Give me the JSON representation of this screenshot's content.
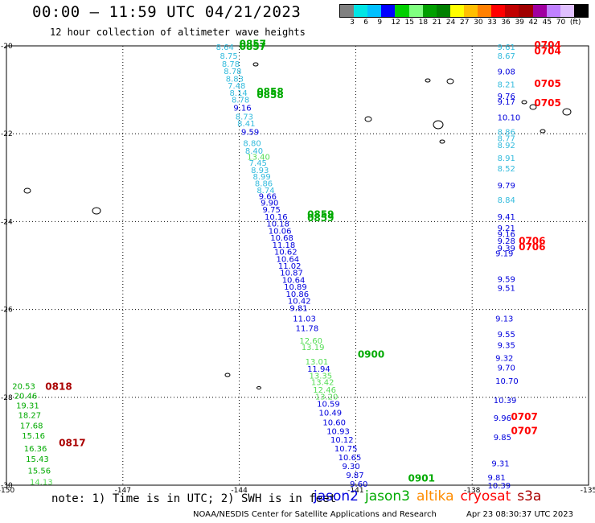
{
  "header": {
    "title": "00:00 – 11:59 UTC 04/21/2023",
    "subtitle": "12 hour collection of altimeter wave heights"
  },
  "colorbar": {
    "colors": [
      "#808080",
      "#00e5e5",
      "#00c0ff",
      "#0000ff",
      "#00d000",
      "#80ff80",
      "#00a000",
      "#008000",
      "#ffff00",
      "#ffbf00",
      "#ff8000",
      "#ff0000",
      "#c00000",
      "#a00000",
      "#a000a0",
      "#c080ff",
      "#e0c0ff",
      "#000000"
    ],
    "labels": [
      "3",
      "6",
      "9",
      "12",
      "15",
      "18",
      "21",
      "24",
      "27",
      "30",
      "33",
      "36",
      "39",
      "42",
      "45",
      "70",
      "(ft)"
    ]
  },
  "chart_data": {
    "type": "scatter",
    "xlim": [
      -150,
      -135
    ],
    "ylim": [
      -30,
      -20
    ],
    "x_ticks": [
      "-150",
      "-147",
      "-144",
      "-141",
      "-138",
      "-135"
    ],
    "y_ticks": [
      "-20",
      "-22",
      "-24",
      "-26",
      "-28",
      "-30"
    ],
    "satellite_colors": {
      "jason2": "#0000dd",
      "jason2_light": "#33bbdd",
      "jason3": "#00aa00",
      "jason3_light": "#55dd55",
      "altika": "#ff8c00",
      "cryosat": "#ff0000",
      "s3a": "#aa0000"
    },
    "tracks": [
      {
        "color": "#33bbdd",
        "points": [
          {
            "lon": -144.6,
            "lat": -20.02,
            "v": "8.64"
          },
          {
            "lon": -144.5,
            "lat": -20.22,
            "v": "8.75"
          },
          {
            "lon": -144.45,
            "lat": -20.4,
            "v": "8.78"
          },
          {
            "lon": -144.4,
            "lat": -20.57,
            "v": "8.78"
          },
          {
            "lon": -144.35,
            "lat": -20.74,
            "v": "8.83"
          },
          {
            "lon": -144.3,
            "lat": -20.9,
            "v": "7.48"
          },
          {
            "lon": -144.25,
            "lat": -21.06,
            "v": "8.14"
          },
          {
            "lon": -144.2,
            "lat": -21.22,
            "v": "8.78"
          },
          {
            "lon": -144.1,
            "lat": -21.6,
            "v": "8.73"
          },
          {
            "lon": -144.05,
            "lat": -21.76,
            "v": "8.41"
          },
          {
            "lon": -143.9,
            "lat": -22.21,
            "v": "8.80"
          },
          {
            "lon": -143.85,
            "lat": -22.38,
            "v": "8.40"
          },
          {
            "lon": -143.75,
            "lat": -22.66,
            "v": "7.45"
          },
          {
            "lon": -143.7,
            "lat": -22.82,
            "v": "8.93"
          },
          {
            "lon": -143.65,
            "lat": -22.97,
            "v": "8.99"
          },
          {
            "lon": -143.6,
            "lat": -23.12,
            "v": "8.86"
          },
          {
            "lon": -143.55,
            "lat": -23.28,
            "v": "8.74"
          }
        ]
      },
      {
        "color": "#0000dd",
        "points": [
          {
            "lon": -144.15,
            "lat": -21.4,
            "v": "9.16"
          },
          {
            "lon": -143.95,
            "lat": -21.95,
            "v": "9.59"
          },
          {
            "lon": -143.5,
            "lat": -23.42,
            "v": "9.66"
          },
          {
            "lon": -143.45,
            "lat": -23.56,
            "v": "9.90"
          },
          {
            "lon": -143.4,
            "lat": -23.72,
            "v": "9.75"
          },
          {
            "lon": -143.35,
            "lat": -23.88,
            "v": "10.16"
          },
          {
            "lon": -143.3,
            "lat": -24.04,
            "v": "10.18"
          },
          {
            "lon": -143.25,
            "lat": -24.2,
            "v": "10.06"
          },
          {
            "lon": -143.2,
            "lat": -24.36,
            "v": "10.68"
          },
          {
            "lon": -143.15,
            "lat": -24.52,
            "v": "11.18"
          },
          {
            "lon": -143.1,
            "lat": -24.68,
            "v": "10.62"
          },
          {
            "lon": -143.05,
            "lat": -24.84,
            "v": "10.64"
          },
          {
            "lon": -143.0,
            "lat": -25.0,
            "v": "11.02"
          },
          {
            "lon": -142.95,
            "lat": -25.16,
            "v": "10.87"
          },
          {
            "lon": -142.9,
            "lat": -25.32,
            "v": "10.64"
          },
          {
            "lon": -142.85,
            "lat": -25.48,
            "v": "10.89"
          },
          {
            "lon": -142.8,
            "lat": -25.64,
            "v": "10.86"
          },
          {
            "lon": -142.75,
            "lat": -25.8,
            "v": "10.42"
          },
          {
            "lon": -142.7,
            "lat": -25.96,
            "v": "9.81"
          },
          {
            "lon": -142.62,
            "lat": -26.2,
            "v": "11.03"
          },
          {
            "lon": -142.55,
            "lat": -26.42,
            "v": "11.78"
          },
          {
            "lon": -142.25,
            "lat": -27.34,
            "v": "11.94"
          },
          {
            "lon": -142.0,
            "lat": -28.14,
            "v": "10.59"
          },
          {
            "lon": -141.95,
            "lat": -28.34,
            "v": "10.49"
          },
          {
            "lon": -141.85,
            "lat": -28.56,
            "v": "10.60"
          },
          {
            "lon": -141.75,
            "lat": -28.76,
            "v": "10.93"
          },
          {
            "lon": -141.65,
            "lat": -28.96,
            "v": "10.12"
          },
          {
            "lon": -141.55,
            "lat": -29.16,
            "v": "10.75"
          },
          {
            "lon": -141.45,
            "lat": -29.36,
            "v": "10.65"
          },
          {
            "lon": -141.35,
            "lat": -29.56,
            "v": "9.30"
          },
          {
            "lon": -141.25,
            "lat": -29.76,
            "v": "9.87"
          },
          {
            "lon": -141.15,
            "lat": -29.96,
            "v": "9.60"
          }
        ]
      },
      {
        "color": "#55dd55",
        "points": [
          {
            "lon": -143.8,
            "lat": -22.52,
            "v": "13.40"
          },
          {
            "lon": -142.45,
            "lat": -26.7,
            "v": "12.60"
          },
          {
            "lon": -142.4,
            "lat": -26.85,
            "v": "13.19"
          },
          {
            "lon": -142.3,
            "lat": -27.18,
            "v": "13.01"
          },
          {
            "lon": -142.2,
            "lat": -27.5,
            "v": "13.35"
          },
          {
            "lon": -142.15,
            "lat": -27.65,
            "v": "13.42"
          },
          {
            "lon": -142.1,
            "lat": -27.82,
            "v": "12.46"
          },
          {
            "lon": -142.05,
            "lat": -27.98,
            "v": "13.20"
          }
        ]
      },
      {
        "color": "#33bbdd",
        "points": [
          {
            "lon": -137.35,
            "lat": -20.02,
            "v": "9.61"
          },
          {
            "lon": -137.35,
            "lat": -20.22,
            "v": "8.67"
          },
          {
            "lon": -137.35,
            "lat": -20.87,
            "v": "8.21"
          },
          {
            "lon": -137.35,
            "lat": -21.95,
            "v": "8.86"
          },
          {
            "lon": -137.35,
            "lat": -22.1,
            "v": "8.77"
          },
          {
            "lon": -137.35,
            "lat": -22.25,
            "v": "8.92"
          },
          {
            "lon": -137.35,
            "lat": -22.55,
            "v": "8.91"
          },
          {
            "lon": -137.35,
            "lat": -22.78,
            "v": "8.52"
          },
          {
            "lon": -137.35,
            "lat": -23.5,
            "v": "8.84"
          }
        ]
      },
      {
        "color": "#0000dd",
        "points": [
          {
            "lon": -137.35,
            "lat": -20.58,
            "v": "9.08"
          },
          {
            "lon": -137.35,
            "lat": -21.14,
            "v": "9.76"
          },
          {
            "lon": -137.35,
            "lat": -21.26,
            "v": "9.17"
          },
          {
            "lon": -137.35,
            "lat": -21.62,
            "v": "10.10"
          },
          {
            "lon": -137.35,
            "lat": -23.17,
            "v": "9.79"
          },
          {
            "lon": -137.35,
            "lat": -23.88,
            "v": "9.41"
          },
          {
            "lon": -137.35,
            "lat": -24.14,
            "v": "9.21"
          },
          {
            "lon": -137.35,
            "lat": -24.28,
            "v": "9.16"
          },
          {
            "lon": -137.35,
            "lat": -24.43,
            "v": "9.28"
          },
          {
            "lon": -137.35,
            "lat": -24.6,
            "v": "9.39"
          },
          {
            "lon": -137.4,
            "lat": -24.72,
            "v": "9.19"
          },
          {
            "lon": -137.35,
            "lat": -25.3,
            "v": "9.59"
          },
          {
            "lon": -137.35,
            "lat": -25.5,
            "v": "9.51"
          },
          {
            "lon": -137.4,
            "lat": -26.2,
            "v": "9.13"
          },
          {
            "lon": -137.35,
            "lat": -26.56,
            "v": "9.55"
          },
          {
            "lon": -137.35,
            "lat": -26.8,
            "v": "9.35"
          },
          {
            "lon": -137.4,
            "lat": -27.1,
            "v": "9.32"
          },
          {
            "lon": -137.35,
            "lat": -27.32,
            "v": "9.70"
          },
          {
            "lon": -137.4,
            "lat": -27.62,
            "v": "10.70"
          },
          {
            "lon": -137.45,
            "lat": -28.06,
            "v": "10.39"
          },
          {
            "lon": -137.45,
            "lat": -28.46,
            "v": "9.96"
          },
          {
            "lon": -137.45,
            "lat": -28.9,
            "v": "9.85"
          },
          {
            "lon": -137.5,
            "lat": -29.5,
            "v": "9.31"
          },
          {
            "lon": -137.6,
            "lat": -29.82,
            "v": "9.81"
          },
          {
            "lon": -137.6,
            "lat": -30.0,
            "v": "10.39"
          }
        ]
      },
      {
        "color": "#00aa00",
        "points": [
          {
            "lon": -149.85,
            "lat": -27.74,
            "v": "20.53"
          },
          {
            "lon": -149.8,
            "lat": -27.96,
            "v": "20.46"
          },
          {
            "lon": -149.75,
            "lat": -28.18,
            "v": "19.31"
          },
          {
            "lon": -149.7,
            "lat": -28.4,
            "v": "18.27"
          },
          {
            "lon": -149.65,
            "lat": -28.64,
            "v": "17.68"
          },
          {
            "lon": -149.6,
            "lat": -28.86,
            "v": "15.16"
          },
          {
            "lon": -149.55,
            "lat": -29.16,
            "v": "16.36"
          },
          {
            "lon": -149.5,
            "lat": -29.4,
            "v": "15.43"
          },
          {
            "lon": -149.45,
            "lat": -29.66,
            "v": "15.56"
          }
        ]
      },
      {
        "color": "#55dd55",
        "points": [
          {
            "lon": -149.4,
            "lat": -29.92,
            "v": "14.13"
          }
        ]
      }
    ],
    "time_labels": [
      {
        "lon": -144.0,
        "lat": -19.95,
        "v": "0857",
        "color": "#00aa00"
      },
      {
        "lon": -144.0,
        "lat": -20.02,
        "v": "0857",
        "color": "#00aa00"
      },
      {
        "lon": -143.55,
        "lat": -21.04,
        "v": "0858",
        "color": "#00aa00"
      },
      {
        "lon": -143.55,
        "lat": -21.12,
        "v": "0858",
        "color": "#00aa00"
      },
      {
        "lon": -142.25,
        "lat": -23.84,
        "v": "0859",
        "color": "#00aa00"
      },
      {
        "lon": -142.25,
        "lat": -23.92,
        "v": "0859",
        "color": "#00aa00"
      },
      {
        "lon": -140.95,
        "lat": -27.02,
        "v": "0900",
        "color": "#00aa00"
      },
      {
        "lon": -139.65,
        "lat": -29.84,
        "v": "0901",
        "color": "#00aa00"
      },
      {
        "lon": -136.4,
        "lat": -19.98,
        "v": "0704",
        "color": "#ff0000"
      },
      {
        "lon": -136.4,
        "lat": -20.12,
        "v": "0704",
        "color": "#ff0000"
      },
      {
        "lon": -136.4,
        "lat": -20.86,
        "v": "0705",
        "color": "#ff0000"
      },
      {
        "lon": -136.4,
        "lat": -21.3,
        "v": "0705",
        "color": "#ff0000"
      },
      {
        "lon": -136.8,
        "lat": -24.44,
        "v": "0706",
        "color": "#ff0000"
      },
      {
        "lon": -136.8,
        "lat": -24.58,
        "v": "0706",
        "color": "#ff0000"
      },
      {
        "lon": -137.0,
        "lat": -28.44,
        "v": "0707",
        "color": "#ff0000"
      },
      {
        "lon": -137.0,
        "lat": -28.76,
        "v": "0707",
        "color": "#ff0000"
      },
      {
        "lon": -149.0,
        "lat": -27.76,
        "v": "0818",
        "color": "#aa0000"
      },
      {
        "lon": -148.65,
        "lat": -29.04,
        "v": "0817",
        "color": "#aa0000"
      }
    ]
  },
  "note": "note: 1) Time is in UTC; 2) SWH is in feet",
  "legend": [
    {
      "name": "jason2",
      "color": "#0000dd"
    },
    {
      "name": "jason3",
      "color": "#00aa00"
    },
    {
      "name": "altika",
      "color": "#ff8c00"
    },
    {
      "name": "cryosat",
      "color": "#ff0000"
    },
    {
      "name": "s3a",
      "color": "#aa0000"
    }
  ],
  "footer": "NOAA/NESDIS Center for Satellite Applications and Research",
  "stamp": "Apr 23 08:30:37 UTC 2023"
}
